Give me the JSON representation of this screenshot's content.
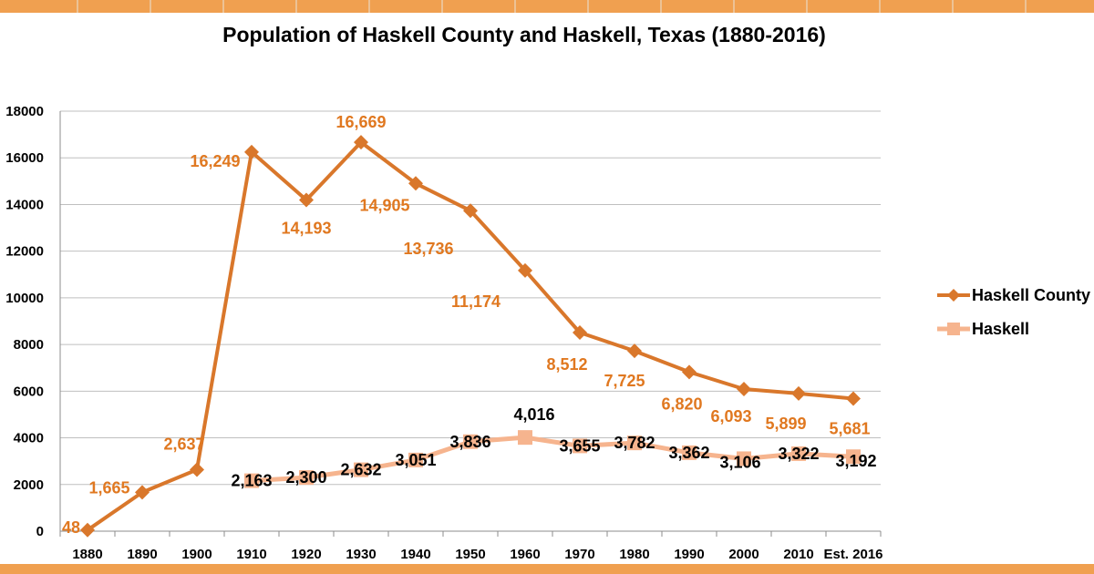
{
  "chart_data": {
    "type": "line",
    "title": "Population of Haskell County and Haskell, Texas (1880-2016)",
    "xlabel": "",
    "ylabel": "",
    "categories": [
      "1880",
      "1890",
      "1900",
      "1910",
      "1920",
      "1930",
      "1940",
      "1950",
      "1960",
      "1970",
      "1980",
      "1990",
      "2000",
      "2010",
      "Est. 2016"
    ],
    "ylim": [
      0,
      18000
    ],
    "yticks": [
      "0",
      "2000",
      "4000",
      "6000",
      "8000",
      "10000",
      "12000",
      "14000",
      "16000",
      "18000"
    ],
    "grid": true,
    "legend_position": "right",
    "series": [
      {
        "name": "Haskell County",
        "color": "#D9772B",
        "marker": "diamond",
        "values": [
          48,
          1665,
          2637,
          16249,
          14193,
          16669,
          14905,
          13736,
          11174,
          8512,
          7725,
          6820,
          6093,
          5899,
          5681
        ],
        "labels": [
          "48",
          "1,665",
          "2,637",
          "16,249",
          "14,193",
          "16,669",
          "14,905",
          "13,736",
          "11,174",
          "8,512",
          "7,725",
          "6,820",
          "6,093",
          "5,899",
          "5,681"
        ]
      },
      {
        "name": "Haskell",
        "color": "#F6B48E",
        "marker": "square",
        "values": [
          null,
          null,
          null,
          2163,
          2300,
          2632,
          3051,
          3836,
          4016,
          3655,
          3782,
          3362,
          3106,
          3322,
          3192
        ],
        "labels": [
          "",
          "",
          "",
          "2,163",
          "2,300",
          "2,632",
          "3,051",
          "3,836",
          "4,016",
          "3,655",
          "3,782",
          "3,362",
          "3,106",
          "3,322",
          "3,192"
        ]
      }
    ]
  }
}
